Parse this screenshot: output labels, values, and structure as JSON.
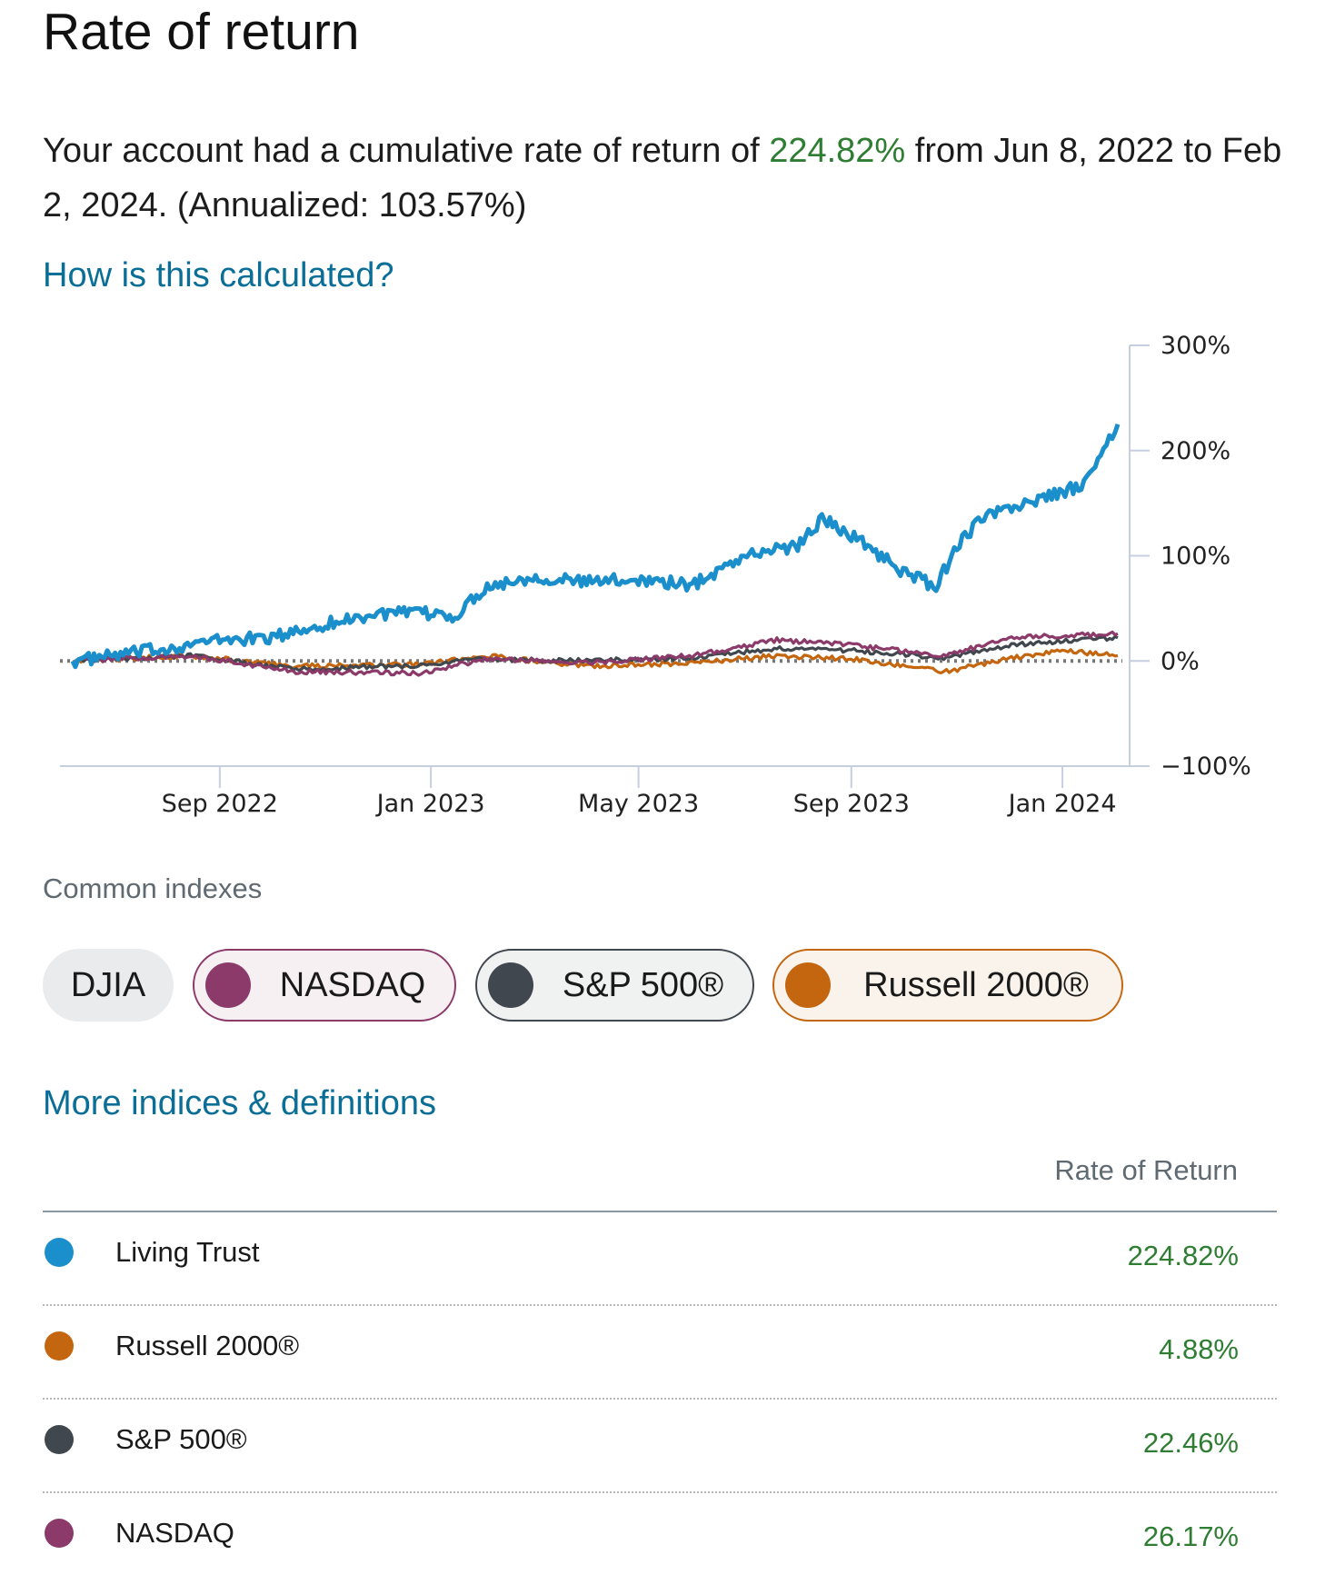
{
  "page": {
    "title": "Rate of return",
    "summary": {
      "prefix": "Your account had a cumulative rate of return of ",
      "rate": "224.82%",
      "middle": " from Jun 8, 2022 to Feb 2, 2024. (Annualized: 103.57%)"
    },
    "calc_link": "How is this calculated?",
    "indexes_label": "Common indexes",
    "chips": [
      {
        "label": "DJIA",
        "selected": false,
        "color": "#8c8c8c"
      },
      {
        "label": "NASDAQ",
        "selected": true,
        "color": "#8b3a6a"
      },
      {
        "label": "S&P 500®",
        "selected": true,
        "color": "#40474e"
      },
      {
        "label": "Russell 2000®",
        "selected": true,
        "color": "#c4650f"
      }
    ],
    "more_link": "More indices & definitions",
    "table": {
      "column_header": "Rate of Return",
      "rows": [
        {
          "name": "Living Trust",
          "value": "224.82%",
          "color": "#1a8fcc"
        },
        {
          "name": "Russell 2000®",
          "value": "4.88%",
          "color": "#c4650f"
        },
        {
          "name": "S&P 500®",
          "value": "22.46%",
          "color": "#40474e"
        },
        {
          "name": "NASDAQ",
          "value": "26.17%",
          "color": "#8b3a6a"
        }
      ]
    }
  },
  "colors": {
    "accent_link": "#0a6e96",
    "positive": "#2e7d32"
  },
  "chart_data": {
    "type": "line",
    "xlabel": "",
    "ylabel": "",
    "x_ticks": [
      "Sep 2022",
      "Jan 2023",
      "May 2023",
      "Sep 2023",
      "Jan 2024"
    ],
    "y_ticks": [
      "300%",
      "200%",
      "100%",
      "0%",
      "−100%"
    ],
    "ylim": [
      -100,
      300
    ],
    "x_range": [
      "2022-06-08",
      "2024-02-02"
    ],
    "reference_line": {
      "y": 0,
      "style": "dotted"
    },
    "legend": "none",
    "series": [
      {
        "name": "Living Trust",
        "color": "#1a8fcc",
        "x": [
          "2022-06-08",
          "2022-07-01",
          "2022-08-01",
          "2022-09-01",
          "2022-10-01",
          "2022-11-01",
          "2022-12-01",
          "2023-01-01",
          "2023-01-15",
          "2023-02-01",
          "2023-03-01",
          "2023-04-01",
          "2023-05-01",
          "2023-06-01",
          "2023-07-01",
          "2023-08-01",
          "2023-08-15",
          "2023-09-01",
          "2023-10-01",
          "2023-10-20",
          "2023-11-01",
          "2023-11-15",
          "2023-12-01",
          "2024-01-01",
          "2024-01-15",
          "2024-02-02"
        ],
        "values": [
          0,
          5,
          12,
          20,
          22,
          35,
          45,
          45,
          42,
          70,
          80,
          75,
          78,
          72,
          100,
          110,
          135,
          120,
          85,
          70,
          110,
          135,
          145,
          160,
          170,
          225
        ]
      },
      {
        "name": "NASDAQ",
        "color": "#8b3a6a",
        "x": [
          "2022-06-08",
          "2022-08-15",
          "2022-10-15",
          "2022-12-28",
          "2023-02-01",
          "2023-04-01",
          "2023-06-01",
          "2023-07-20",
          "2023-09-01",
          "2023-10-26",
          "2023-12-01",
          "2024-02-02"
        ],
        "values": [
          0,
          5,
          -10,
          -12,
          2,
          -2,
          5,
          20,
          15,
          5,
          22,
          26
        ]
      },
      {
        "name": "S&P 500®",
        "color": "#40474e",
        "x": [
          "2022-06-08",
          "2022-08-15",
          "2022-10-15",
          "2022-12-28",
          "2023-02-01",
          "2023-04-01",
          "2023-06-01",
          "2023-07-20",
          "2023-09-01",
          "2023-10-26",
          "2023-12-01",
          "2024-02-02"
        ],
        "values": [
          0,
          5,
          -8,
          -4,
          2,
          0,
          3,
          12,
          10,
          3,
          15,
          22
        ]
      },
      {
        "name": "Russell 2000®",
        "color": "#c4650f",
        "x": [
          "2022-06-08",
          "2022-08-15",
          "2022-10-15",
          "2022-12-28",
          "2023-02-01",
          "2023-04-01",
          "2023-06-01",
          "2023-07-20",
          "2023-09-01",
          "2023-10-26",
          "2023-12-01",
          "2024-01-01",
          "2024-02-02"
        ],
        "values": [
          0,
          5,
          -5,
          -3,
          5,
          -5,
          -2,
          5,
          2,
          -10,
          2,
          10,
          5
        ]
      }
    ]
  }
}
